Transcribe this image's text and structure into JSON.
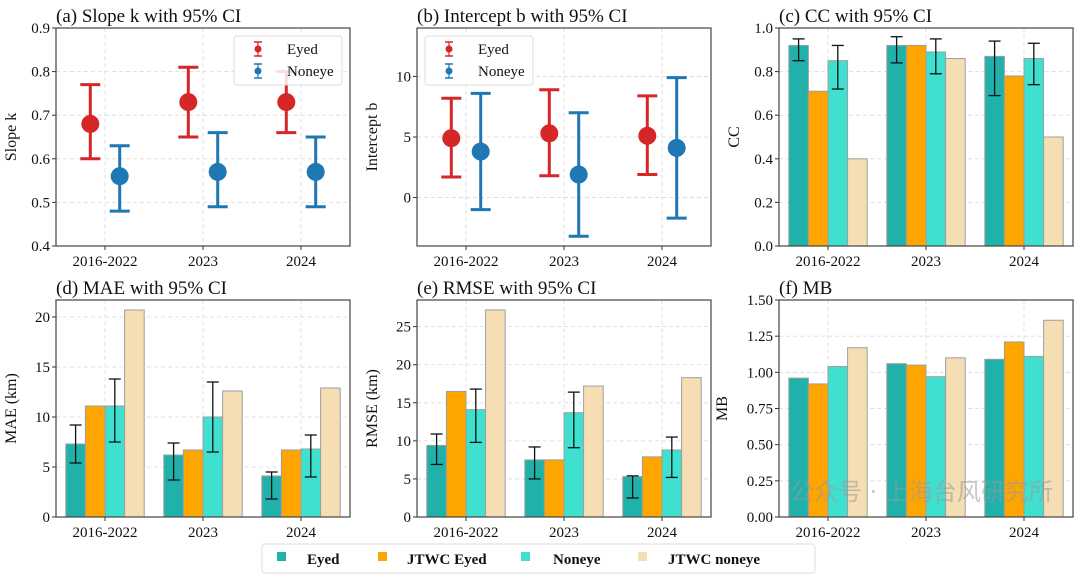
{
  "watermark": "公众号 · 上海台风研究所",
  "colors": {
    "eyed_point": "#d62728",
    "noneye_point": "#1f77b4",
    "Eyed": "#20b2aa",
    "JTWC Eyed": "#ffa500",
    "Noneye": "#40e0d0",
    "JTWC noneye": "#f5deb3",
    "bar_edge": "#9e9e9e",
    "grid": "#d9d9d9"
  },
  "legend": {
    "placement": "bottom-center",
    "entries": [
      "Eyed",
      "JTWC Eyed",
      "Noneye",
      "JTWC noneye"
    ]
  },
  "chart_data": [
    {
      "id": "a",
      "type": "scatter",
      "title": "(a) Slope k with 95% CI",
      "ylabel": "Slope k",
      "xlabel": "",
      "categories": [
        "2016-2022",
        "2023",
        "2024"
      ],
      "ylim": [
        0.4,
        0.9
      ],
      "yticks": [
        "0.4",
        "0.5",
        "0.6",
        "0.7",
        "0.8",
        "0.9"
      ],
      "grid": true,
      "legend_placement": "top-right",
      "series": [
        {
          "name": "Eyed",
          "color": "#d62728",
          "values": [
            0.68,
            0.73,
            0.73
          ],
          "ci_low": [
            0.6,
            0.65,
            0.66
          ],
          "ci_high": [
            0.77,
            0.81,
            0.8
          ]
        },
        {
          "name": "Noneye",
          "color": "#1f77b4",
          "values": [
            0.56,
            0.57,
            0.57
          ],
          "ci_low": [
            0.48,
            0.49,
            0.49
          ],
          "ci_high": [
            0.63,
            0.66,
            0.65
          ]
        }
      ]
    },
    {
      "id": "b",
      "type": "scatter",
      "title": "(b) Intercept b with 95% CI",
      "ylabel": "Intercept b",
      "xlabel": "",
      "categories": [
        "2016-2022",
        "2023",
        "2024"
      ],
      "ylim": [
        -4.0,
        14.0
      ],
      "yticks": [
        "0",
        "5",
        "10"
      ],
      "ytick_values": [
        0,
        5,
        10
      ],
      "grid": true,
      "legend_placement": "top-left",
      "series": [
        {
          "name": "Eyed",
          "color": "#d62728",
          "values": [
            4.9,
            5.3,
            5.1
          ],
          "ci_low": [
            1.7,
            1.8,
            1.9
          ],
          "ci_high": [
            8.2,
            8.9,
            8.4
          ]
        },
        {
          "name": "Noneye",
          "color": "#1f77b4",
          "values": [
            3.8,
            1.9,
            4.1
          ],
          "ci_low": [
            -1.0,
            -3.2,
            -1.7
          ],
          "ci_high": [
            8.6,
            7.0,
            9.9
          ]
        }
      ]
    },
    {
      "id": "c",
      "type": "bar",
      "title": "(c) CC with 95% CI",
      "ylabel": "CC",
      "xlabel": "",
      "categories": [
        "2016-2022",
        "2023",
        "2024"
      ],
      "ylim": [
        0.0,
        1.0
      ],
      "yticks": [
        "0.0",
        "0.2",
        "0.4",
        "0.6",
        "0.8",
        "1.0"
      ],
      "grid": true,
      "series": [
        {
          "name": "Eyed",
          "values": [
            0.92,
            0.92,
            0.87
          ],
          "ci_low": [
            0.85,
            0.84,
            0.69
          ],
          "ci_high": [
            0.95,
            0.96,
            0.94
          ]
        },
        {
          "name": "JTWC Eyed",
          "values": [
            0.71,
            0.92,
            0.78
          ]
        },
        {
          "name": "Noneye",
          "values": [
            0.85,
            0.89,
            0.86
          ],
          "ci_low": [
            0.72,
            0.79,
            0.74
          ],
          "ci_high": [
            0.92,
            0.95,
            0.93
          ]
        },
        {
          "name": "JTWC noneye",
          "values": [
            0.4,
            0.86,
            0.5
          ]
        }
      ]
    },
    {
      "id": "d",
      "type": "bar",
      "title": "(d) MAE with 95% CI",
      "ylabel": "MAE (km)",
      "xlabel": "",
      "categories": [
        "2016-2022",
        "2023",
        "2024"
      ],
      "ylim": [
        0,
        21.7
      ],
      "yticks": [
        "0",
        "5",
        "10",
        "15",
        "20"
      ],
      "ytick_values": [
        0,
        5,
        10,
        15,
        20
      ],
      "grid": true,
      "series": [
        {
          "name": "Eyed",
          "values": [
            7.3,
            6.2,
            4.1
          ],
          "ci_low": [
            5.4,
            3.7,
            1.8
          ],
          "ci_high": [
            9.2,
            7.4,
            4.5
          ]
        },
        {
          "name": "JTWC Eyed",
          "values": [
            11.1,
            6.7,
            6.7
          ]
        },
        {
          "name": "Noneye",
          "values": [
            11.1,
            10.0,
            6.8
          ],
          "ci_low": [
            7.5,
            6.5,
            4.0
          ],
          "ci_high": [
            13.8,
            13.5,
            8.2
          ]
        },
        {
          "name": "JTWC noneye",
          "values": [
            20.7,
            12.6,
            12.9
          ]
        }
      ]
    },
    {
      "id": "e",
      "type": "bar",
      "title": "(e) RMSE with 95% CI",
      "ylabel": "RMSE (km)",
      "xlabel": "",
      "categories": [
        "2016-2022",
        "2023",
        "2024"
      ],
      "ylim": [
        0,
        28.5
      ],
      "yticks": [
        "0",
        "5",
        "10",
        "15",
        "20",
        "25"
      ],
      "ytick_values": [
        0,
        5,
        10,
        15,
        20,
        25
      ],
      "grid": true,
      "series": [
        {
          "name": "Eyed",
          "values": [
            9.4,
            7.5,
            5.3
          ],
          "ci_low": [
            6.9,
            5.0,
            2.5
          ],
          "ci_high": [
            10.9,
            9.2,
            5.4
          ]
        },
        {
          "name": "JTWC Eyed",
          "values": [
            16.5,
            7.5,
            7.9
          ]
        },
        {
          "name": "Noneye",
          "values": [
            14.1,
            13.7,
            8.8
          ],
          "ci_low": [
            9.8,
            9.1,
            5.2
          ],
          "ci_high": [
            16.8,
            16.4,
            10.5
          ]
        },
        {
          "name": "JTWC noneye",
          "values": [
            27.2,
            17.2,
            18.3
          ]
        }
      ]
    },
    {
      "id": "f",
      "type": "bar",
      "title": "(f) MB",
      "ylabel": "MB",
      "xlabel": "",
      "categories": [
        "2016-2022",
        "2023",
        "2024"
      ],
      "ylim": [
        0.0,
        1.5
      ],
      "yticks": [
        "0.00",
        "0.25",
        "0.50",
        "0.75",
        "1.00",
        "1.25",
        "1.50"
      ],
      "grid": true,
      "series": [
        {
          "name": "Eyed",
          "values": [
            0.96,
            1.06,
            1.09
          ]
        },
        {
          "name": "JTWC Eyed",
          "values": [
            0.92,
            1.05,
            1.21
          ]
        },
        {
          "name": "Noneye",
          "values": [
            1.04,
            0.97,
            1.11
          ]
        },
        {
          "name": "JTWC noneye",
          "values": [
            1.17,
            1.1,
            1.36
          ]
        }
      ]
    }
  ]
}
